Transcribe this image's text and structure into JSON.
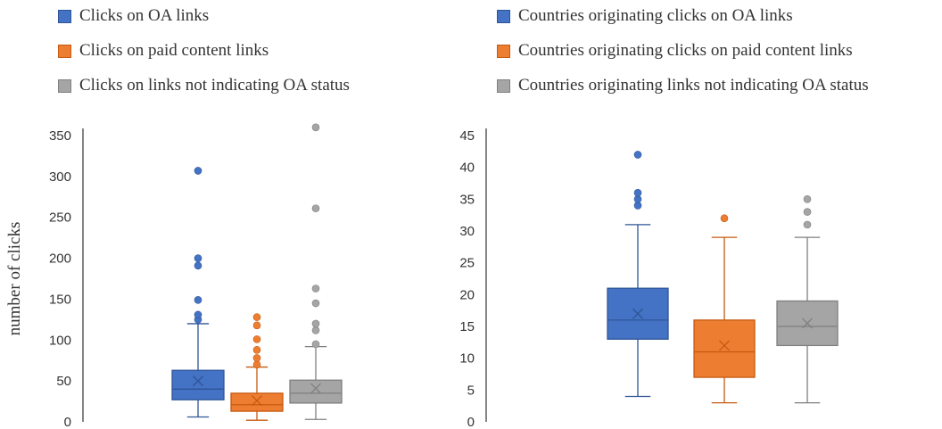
{
  "colors": {
    "blue": "#4472c4",
    "blue_edge": "#2f5597",
    "orange": "#ed7d31",
    "orange_edge": "#c55a11",
    "gray": "#a5a5a5",
    "gray_edge": "#7f7f7f"
  },
  "chart_data": [
    {
      "type": "box",
      "title": "",
      "xlabel": "",
      "ylabel": "number of clicks",
      "ylim": [
        0,
        350
      ],
      "yticks": [
        0,
        50,
        100,
        150,
        200,
        250,
        300,
        350
      ],
      "legend": "top",
      "series": [
        {
          "name": "Clicks on OA links",
          "color": "blue",
          "min": 6,
          "q1": 27,
          "median": 40,
          "q3": 63,
          "max": 120,
          "mean": 50,
          "outliers": [
            125,
            131,
            149,
            191,
            200,
            307
          ]
        },
        {
          "name": "Clicks on paid content links",
          "color": "orange",
          "min": 2,
          "q1": 13,
          "median": 21,
          "q3": 35,
          "max": 67,
          "mean": 26,
          "outliers": [
            70,
            78,
            88,
            101,
            118,
            128
          ]
        },
        {
          "name": "Clicks on links not indicating OA status",
          "color": "gray",
          "min": 3,
          "q1": 23,
          "median": 35,
          "q3": 51,
          "max": 92,
          "mean": 41,
          "outliers": [
            95,
            112,
            120,
            145,
            163,
            261,
            360
          ]
        }
      ]
    },
    {
      "type": "box",
      "title": "",
      "xlabel": "",
      "ylabel": "",
      "ylim": [
        0,
        45
      ],
      "yticks": [
        0,
        5,
        10,
        15,
        20,
        25,
        30,
        35,
        40,
        45
      ],
      "legend": "top",
      "series": [
        {
          "name": "Countries originating clicks on OA links",
          "color": "blue",
          "min": 4,
          "q1": 13,
          "median": 16,
          "q3": 21,
          "max": 31,
          "mean": 17,
          "outliers": [
            34,
            35,
            36,
            42
          ]
        },
        {
          "name": "Countries originating clicks on paid content links",
          "color": "orange",
          "min": 3,
          "q1": 7,
          "median": 11,
          "q3": 16,
          "max": 29,
          "mean": 12,
          "outliers": [
            32
          ]
        },
        {
          "name": "Countries originating links not indicating OA status",
          "color": "gray",
          "min": 3,
          "q1": 12,
          "median": 15,
          "q3": 19,
          "max": 29,
          "mean": 15.5,
          "outliers": [
            31,
            33,
            35
          ]
        }
      ]
    }
  ]
}
